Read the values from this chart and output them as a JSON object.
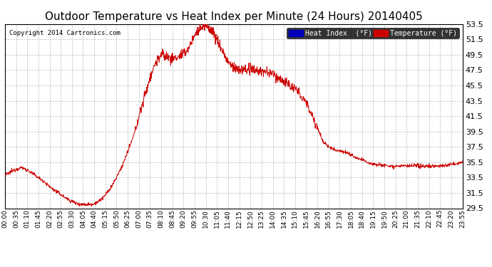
{
  "title": "Outdoor Temperature vs Heat Index per Minute (24 Hours) 20140405",
  "copyright": "Copyright 2014 Cartronics.com",
  "ylim": [
    29.5,
    53.5
  ],
  "yticks": [
    29.5,
    31.5,
    33.5,
    35.5,
    37.5,
    39.5,
    41.5,
    43.5,
    45.5,
    47.5,
    49.5,
    51.5,
    53.5
  ],
  "line_color": "#cc0000",
  "background_color": "#ffffff",
  "grid_color": "#aaaaaa",
  "title_fontsize": 11,
  "legend_heat_index_bg": "#0000bb",
  "legend_temp_bg": "#cc0000",
  "xtick_labels": [
    "00:00",
    "00:35",
    "01:10",
    "01:45",
    "02:20",
    "02:55",
    "03:30",
    "04:05",
    "04:40",
    "05:15",
    "05:50",
    "06:25",
    "07:00",
    "07:35",
    "08:10",
    "08:45",
    "09:20",
    "09:55",
    "10:30",
    "11:05",
    "11:40",
    "12:15",
    "12:50",
    "13:25",
    "14:00",
    "14:35",
    "15:10",
    "15:45",
    "16:20",
    "16:55",
    "17:30",
    "18:05",
    "18:40",
    "19:15",
    "19:50",
    "20:25",
    "21:00",
    "21:35",
    "22:10",
    "22:45",
    "23:20",
    "23:55"
  ],
  "waypoints": [
    [
      0,
      33.8
    ],
    [
      0.5,
      34.2
    ],
    [
      1.0,
      34.6
    ],
    [
      1.5,
      34.8
    ],
    [
      2.0,
      34.5
    ],
    [
      2.5,
      34.0
    ],
    [
      3.0,
      33.5
    ],
    [
      3.5,
      33.0
    ],
    [
      4.0,
      32.3
    ],
    [
      4.5,
      31.8
    ],
    [
      5.0,
      31.3
    ],
    [
      5.5,
      30.8
    ],
    [
      6.0,
      30.4
    ],
    [
      6.5,
      30.1
    ],
    [
      7.0,
      30.0
    ],
    [
      7.5,
      30.0
    ],
    [
      8.0,
      30.1
    ],
    [
      8.5,
      30.5
    ],
    [
      9.0,
      31.2
    ],
    [
      9.5,
      32.2
    ],
    [
      10.0,
      33.5
    ],
    [
      10.5,
      35.0
    ],
    [
      11.0,
      36.8
    ],
    [
      11.5,
      38.8
    ],
    [
      12.0,
      41.5
    ],
    [
      12.5,
      44.0
    ],
    [
      13.0,
      46.5
    ],
    [
      13.5,
      48.5
    ],
    [
      14.0,
      49.5
    ],
    [
      14.5,
      49.3
    ],
    [
      15.0,
      49.0
    ],
    [
      15.5,
      49.2
    ],
    [
      16.0,
      49.5
    ],
    [
      16.5,
      50.5
    ],
    [
      17.0,
      52.0
    ],
    [
      17.5,
      53.0
    ],
    [
      18.0,
      53.2
    ],
    [
      18.5,
      52.8
    ],
    [
      19.0,
      51.5
    ],
    [
      19.5,
      50.0
    ],
    [
      20.0,
      48.5
    ],
    [
      20.5,
      47.8
    ],
    [
      21.0,
      47.5
    ],
    [
      21.5,
      47.5
    ],
    [
      22.0,
      47.5
    ],
    [
      22.5,
      47.5
    ],
    [
      23.0,
      47.3
    ],
    [
      23.5,
      47.2
    ],
    [
      24.0,
      47.0
    ],
    [
      24.5,
      46.5
    ],
    [
      25.0,
      46.0
    ],
    [
      25.5,
      45.5
    ],
    [
      26.0,
      45.0
    ],
    [
      26.5,
      44.3
    ],
    [
      27.0,
      43.2
    ],
    [
      27.5,
      41.8
    ],
    [
      28.0,
      40.0
    ],
    [
      28.5,
      38.2
    ],
    [
      29.0,
      37.5
    ],
    [
      29.5,
      37.2
    ],
    [
      30.0,
      37.0
    ],
    [
      30.5,
      36.8
    ],
    [
      31.0,
      36.5
    ],
    [
      31.5,
      36.0
    ],
    [
      32.0,
      35.8
    ],
    [
      32.5,
      35.5
    ],
    [
      33.0,
      35.3
    ],
    [
      33.5,
      35.2
    ],
    [
      34.0,
      35.1
    ],
    [
      34.5,
      35.0
    ],
    [
      35.0,
      35.0
    ],
    [
      35.5,
      35.0
    ],
    [
      36.0,
      35.0
    ],
    [
      36.5,
      35.0
    ],
    [
      37.0,
      35.0
    ],
    [
      37.5,
      35.0
    ],
    [
      38.0,
      35.0
    ],
    [
      38.5,
      35.0
    ],
    [
      39.0,
      35.0
    ],
    [
      39.5,
      35.1
    ],
    [
      40.0,
      35.2
    ],
    [
      40.5,
      35.3
    ],
    [
      41.0,
      35.5
    ]
  ]
}
